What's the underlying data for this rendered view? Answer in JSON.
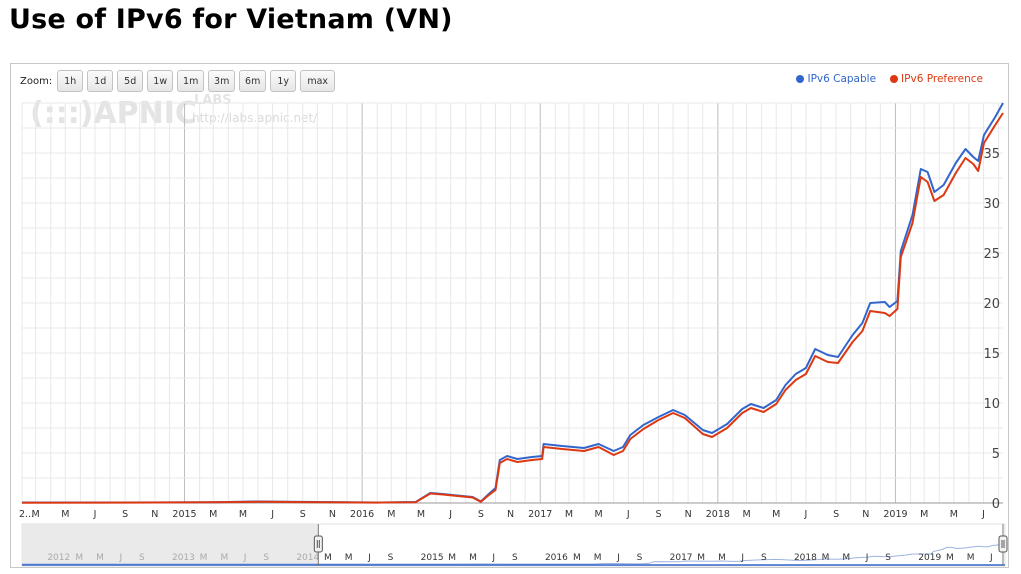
{
  "title": "Use of IPv6 for Vietnam (VN)",
  "zoom": {
    "label": "Zoom:",
    "buttons": [
      "1h",
      "1d",
      "5d",
      "1w",
      "1m",
      "3m",
      "6m",
      "1y",
      "max"
    ]
  },
  "watermark": {
    "logo": "(:::)APNIC",
    "labs": "LABS",
    "url": "http://labs.apnic.net/"
  },
  "colors": {
    "capable": "#3366cc",
    "preference": "#dc3912",
    "grid": "#e8e8e8",
    "major_grid": "#bdbdbd"
  },
  "chart_data": {
    "type": "line",
    "title": "Use of IPv6 for Vietnam (VN)",
    "xlabel": "",
    "ylabel": "",
    "ylim": [
      0,
      40
    ],
    "y_ticks": [
      0,
      5,
      10,
      15,
      20,
      25,
      30,
      35
    ],
    "x_range": [
      "2014-02-01",
      "2019-08-10"
    ],
    "x_tick_labels": [
      {
        "date": "2014-02-01",
        "label": "2..."
      },
      {
        "date": "2014-03-01",
        "label": "M"
      },
      {
        "date": "2014-05-01",
        "label": "M"
      },
      {
        "date": "2014-07-01",
        "label": "J"
      },
      {
        "date": "2014-09-01",
        "label": "S"
      },
      {
        "date": "2014-11-01",
        "label": "N"
      },
      {
        "date": "2015-01-01",
        "label": "2015"
      },
      {
        "date": "2015-03-01",
        "label": "M"
      },
      {
        "date": "2015-05-01",
        "label": "M"
      },
      {
        "date": "2015-07-01",
        "label": "J"
      },
      {
        "date": "2015-09-01",
        "label": "S"
      },
      {
        "date": "2015-11-01",
        "label": "N"
      },
      {
        "date": "2016-01-01",
        "label": "2016"
      },
      {
        "date": "2016-03-01",
        "label": "M"
      },
      {
        "date": "2016-05-01",
        "label": "M"
      },
      {
        "date": "2016-07-01",
        "label": "J"
      },
      {
        "date": "2016-09-01",
        "label": "S"
      },
      {
        "date": "2016-11-01",
        "label": "N"
      },
      {
        "date": "2017-01-01",
        "label": "2017"
      },
      {
        "date": "2017-03-01",
        "label": "M"
      },
      {
        "date": "2017-05-01",
        "label": "M"
      },
      {
        "date": "2017-07-01",
        "label": "J"
      },
      {
        "date": "2017-09-01",
        "label": "S"
      },
      {
        "date": "2017-11-01",
        "label": "N"
      },
      {
        "date": "2018-01-01",
        "label": "2018"
      },
      {
        "date": "2018-03-01",
        "label": "M"
      },
      {
        "date": "2018-05-01",
        "label": "M"
      },
      {
        "date": "2018-07-01",
        "label": "J"
      },
      {
        "date": "2018-09-01",
        "label": "S"
      },
      {
        "date": "2018-11-01",
        "label": "N"
      },
      {
        "date": "2019-01-01",
        "label": "2019"
      },
      {
        "date": "2019-03-01",
        "label": "M"
      },
      {
        "date": "2019-05-01",
        "label": "M"
      },
      {
        "date": "2019-07-01",
        "label": "J"
      }
    ],
    "legend_position": "top-right",
    "grid": true,
    "series": [
      {
        "name": "IPv6 Capable",
        "color": "#3366cc",
        "points": [
          [
            "2014-02-01",
            0.05
          ],
          [
            "2014-09-01",
            0.05
          ],
          [
            "2015-03-01",
            0.08
          ],
          [
            "2015-06-01",
            0.15
          ],
          [
            "2015-10-01",
            0.1
          ],
          [
            "2016-02-01",
            0.05
          ],
          [
            "2016-04-20",
            0.1
          ],
          [
            "2016-05-20",
            1.0
          ],
          [
            "2016-06-15",
            0.9
          ],
          [
            "2016-07-15",
            0.75
          ],
          [
            "2016-08-15",
            0.6
          ],
          [
            "2016-09-01",
            0.15
          ],
          [
            "2016-09-15",
            0.8
          ],
          [
            "2016-10-01",
            1.5
          ],
          [
            "2016-10-10",
            4.3
          ],
          [
            "2016-10-25",
            4.7
          ],
          [
            "2016-11-15",
            4.4
          ],
          [
            "2016-12-15",
            4.6
          ],
          [
            "2017-01-05",
            4.7
          ],
          [
            "2017-01-08",
            5.9
          ],
          [
            "2017-02-15",
            5.7
          ],
          [
            "2017-04-01",
            5.5
          ],
          [
            "2017-05-01",
            5.9
          ],
          [
            "2017-06-01",
            5.2
          ],
          [
            "2017-06-20",
            5.6
          ],
          [
            "2017-07-05",
            6.8
          ],
          [
            "2017-08-01",
            7.8
          ],
          [
            "2017-09-01",
            8.6
          ],
          [
            "2017-10-01",
            9.3
          ],
          [
            "2017-10-25",
            8.8
          ],
          [
            "2017-12-01",
            7.3
          ],
          [
            "2017-12-20",
            7.0
          ],
          [
            "2018-01-20",
            7.9
          ],
          [
            "2018-02-20",
            9.4
          ],
          [
            "2018-03-10",
            9.9
          ],
          [
            "2018-04-05",
            9.5
          ],
          [
            "2018-05-01",
            10.3
          ],
          [
            "2018-05-20",
            11.8
          ],
          [
            "2018-06-10",
            12.9
          ],
          [
            "2018-07-01",
            13.5
          ],
          [
            "2018-07-20",
            15.4
          ],
          [
            "2018-08-15",
            14.8
          ],
          [
            "2018-09-05",
            14.6
          ],
          [
            "2018-10-05",
            16.8
          ],
          [
            "2018-10-25",
            18.0
          ],
          [
            "2018-11-10",
            20.0
          ],
          [
            "2018-12-10",
            20.1
          ],
          [
            "2018-12-20",
            19.6
          ],
          [
            "2019-01-05",
            20.2
          ],
          [
            "2019-01-12",
            25.2
          ],
          [
            "2019-02-05",
            28.8
          ],
          [
            "2019-02-22",
            33.4
          ],
          [
            "2019-03-08",
            33.1
          ],
          [
            "2019-03-22",
            31.1
          ],
          [
            "2019-04-10",
            31.8
          ],
          [
            "2019-05-05",
            34.0
          ],
          [
            "2019-05-25",
            35.4
          ],
          [
            "2019-06-10",
            34.6
          ],
          [
            "2019-06-20",
            34.2
          ],
          [
            "2019-07-02",
            36.8
          ],
          [
            "2019-07-25",
            38.6
          ],
          [
            "2019-08-10",
            40.0
          ]
        ]
      },
      {
        "name": "IPv6 Preference",
        "color": "#dc3912",
        "points": [
          [
            "2014-02-01",
            0.03
          ],
          [
            "2014-09-01",
            0.04
          ],
          [
            "2015-03-01",
            0.07
          ],
          [
            "2015-06-01",
            0.12
          ],
          [
            "2015-10-01",
            0.08
          ],
          [
            "2016-02-01",
            0.04
          ],
          [
            "2016-04-20",
            0.08
          ],
          [
            "2016-05-20",
            0.95
          ],
          [
            "2016-06-15",
            0.85
          ],
          [
            "2016-07-15",
            0.7
          ],
          [
            "2016-08-15",
            0.55
          ],
          [
            "2016-09-01",
            0.12
          ],
          [
            "2016-09-15",
            0.7
          ],
          [
            "2016-10-01",
            1.3
          ],
          [
            "2016-10-10",
            4.0
          ],
          [
            "2016-10-25",
            4.4
          ],
          [
            "2016-11-15",
            4.1
          ],
          [
            "2016-12-15",
            4.3
          ],
          [
            "2017-01-05",
            4.4
          ],
          [
            "2017-01-08",
            5.6
          ],
          [
            "2017-02-15",
            5.4
          ],
          [
            "2017-04-01",
            5.2
          ],
          [
            "2017-05-01",
            5.6
          ],
          [
            "2017-06-01",
            4.8
          ],
          [
            "2017-06-20",
            5.2
          ],
          [
            "2017-07-05",
            6.4
          ],
          [
            "2017-08-01",
            7.4
          ],
          [
            "2017-09-01",
            8.3
          ],
          [
            "2017-10-01",
            9.0
          ],
          [
            "2017-10-25",
            8.5
          ],
          [
            "2017-12-01",
            6.9
          ],
          [
            "2017-12-20",
            6.6
          ],
          [
            "2018-01-20",
            7.5
          ],
          [
            "2018-02-20",
            9.0
          ],
          [
            "2018-03-10",
            9.5
          ],
          [
            "2018-04-05",
            9.1
          ],
          [
            "2018-05-01",
            9.9
          ],
          [
            "2018-05-20",
            11.3
          ],
          [
            "2018-06-10",
            12.3
          ],
          [
            "2018-07-01",
            12.9
          ],
          [
            "2018-07-20",
            14.7
          ],
          [
            "2018-08-15",
            14.1
          ],
          [
            "2018-09-05",
            14.0
          ],
          [
            "2018-10-05",
            16.1
          ],
          [
            "2018-10-25",
            17.2
          ],
          [
            "2018-11-10",
            19.2
          ],
          [
            "2018-12-10",
            19.0
          ],
          [
            "2018-12-20",
            18.7
          ],
          [
            "2019-01-05",
            19.4
          ],
          [
            "2019-01-12",
            24.6
          ],
          [
            "2019-02-05",
            28.0
          ],
          [
            "2019-02-22",
            32.6
          ],
          [
            "2019-03-08",
            32.1
          ],
          [
            "2019-03-22",
            30.2
          ],
          [
            "2019-04-10",
            30.8
          ],
          [
            "2019-05-05",
            33.0
          ],
          [
            "2019-05-25",
            34.5
          ],
          [
            "2019-06-10",
            33.9
          ],
          [
            "2019-06-20",
            33.2
          ],
          [
            "2019-07-02",
            36.0
          ],
          [
            "2019-07-25",
            37.8
          ],
          [
            "2019-08-10",
            39.0
          ]
        ]
      }
    ],
    "navigator": {
      "x_range": [
        "2011-09-15",
        "2019-08-10"
      ],
      "selected_range": [
        "2014-02-01",
        "2019-08-10"
      ],
      "tick_labels": [
        {
          "date": "2012-01-01",
          "label": "2012"
        },
        {
          "date": "2012-03-01",
          "label": "M"
        },
        {
          "date": "2012-05-01",
          "label": "M"
        },
        {
          "date": "2012-07-01",
          "label": "J"
        },
        {
          "date": "2012-09-01",
          "label": "S"
        },
        {
          "date": "2013-01-01",
          "label": "2013"
        },
        {
          "date": "2013-03-01",
          "label": "M"
        },
        {
          "date": "2013-05-01",
          "label": "M"
        },
        {
          "date": "2013-07-01",
          "label": "J"
        },
        {
          "date": "2013-09-01",
          "label": "S"
        },
        {
          "date": "2014-01-01",
          "label": "2014"
        },
        {
          "date": "2014-03-01",
          "label": "M"
        },
        {
          "date": "2014-05-01",
          "label": "M"
        },
        {
          "date": "2014-07-01",
          "label": "J"
        },
        {
          "date": "2014-09-01",
          "label": "S"
        },
        {
          "date": "2015-01-01",
          "label": "2015"
        },
        {
          "date": "2015-03-01",
          "label": "M"
        },
        {
          "date": "2015-05-01",
          "label": "M"
        },
        {
          "date": "2015-07-01",
          "label": "J"
        },
        {
          "date": "2015-09-01",
          "label": "S"
        },
        {
          "date": "2016-01-01",
          "label": "2016"
        },
        {
          "date": "2016-03-01",
          "label": "M"
        },
        {
          "date": "2016-05-01",
          "label": "M"
        },
        {
          "date": "2016-07-01",
          "label": "J"
        },
        {
          "date": "2016-09-01",
          "label": "S"
        },
        {
          "date": "2017-01-01",
          "label": "2017"
        },
        {
          "date": "2017-03-01",
          "label": "M"
        },
        {
          "date": "2017-05-01",
          "label": "M"
        },
        {
          "date": "2017-07-01",
          "label": "J"
        },
        {
          "date": "2017-09-01",
          "label": "S"
        },
        {
          "date": "2018-01-01",
          "label": "2018"
        },
        {
          "date": "2018-03-01",
          "label": "M"
        },
        {
          "date": "2018-05-01",
          "label": "M"
        },
        {
          "date": "2018-07-01",
          "label": "J"
        },
        {
          "date": "2018-09-01",
          "label": "S"
        },
        {
          "date": "2019-01-01",
          "label": "2019"
        },
        {
          "date": "2019-03-01",
          "label": "M"
        },
        {
          "date": "2019-05-01",
          "label": "M"
        },
        {
          "date": "2019-07-01",
          "label": "J"
        }
      ]
    }
  }
}
